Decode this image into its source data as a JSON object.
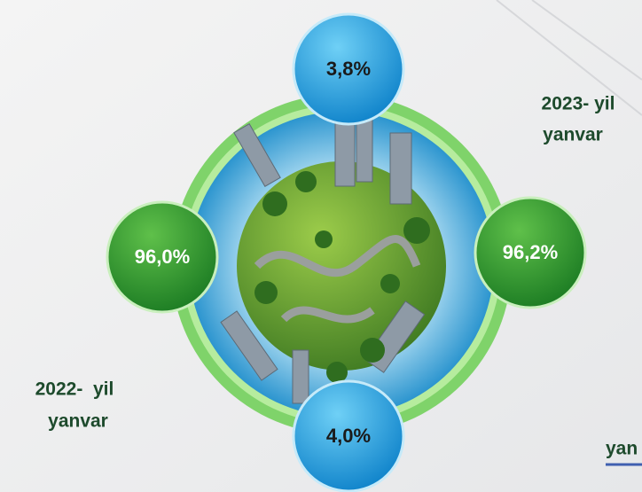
{
  "bubbles": [
    {
      "label": "3,8%"
    },
    {
      "label": "96,2%"
    },
    {
      "label": "96,0%"
    },
    {
      "label": "4,0%"
    }
  ],
  "periods": [
    {
      "year": "2023- yil",
      "month": "yanvar"
    },
    {
      "year": "2022-  yil",
      "month": "yanvar"
    }
  ],
  "partial_label": "yan"
}
